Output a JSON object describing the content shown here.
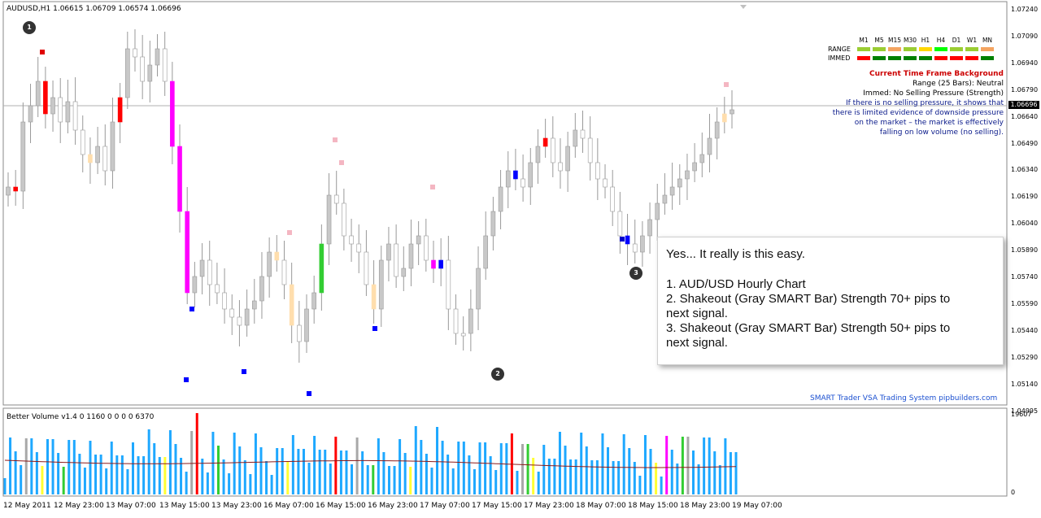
{
  "window": {
    "title": "AUDUSD,H1  1.06615 1.06709 1.06574 1.06696"
  },
  "price_scale": [
    "1.07240",
    "1.07090",
    "1.06940",
    "1.06790",
    "1.06640",
    "1.06490",
    "1.06340",
    "1.06190",
    "1.06040",
    "1.05890",
    "1.05740",
    "1.05590",
    "1.05440",
    "1.05290",
    "1.05140",
    "1.04995"
  ],
  "current_price": "1.06696",
  "volume_indicator": {
    "title": "Better Volume v1.4 0 1160 0 0 0 0 6370",
    "scale_top": "19607",
    "scale_bottom": "0"
  },
  "time_axis": [
    "12 May 2011",
    "12 May 23:00",
    "13 May 07:00",
    "13 May 15:00",
    "13 May 23:00",
    "16 May 07:00",
    "16 May 15:00",
    "16 May 23:00",
    "17 May 07:00",
    "17 May 15:00",
    "17 May 23:00",
    "18 May 07:00",
    "18 May 15:00",
    "18 May 23:00",
    "19 May 07:00"
  ],
  "timeframe_table": {
    "headers": [
      "M1",
      "M5",
      "M15",
      "M30",
      "H1",
      "H4",
      "D1",
      "W1",
      "MN"
    ],
    "rows": [
      {
        "label": "RANGE",
        "colors": [
          "#9acd32",
          "#9acd32",
          "#f4a460",
          "#9acd32",
          "#ffd700",
          "#00ff00",
          "#9acd32",
          "#9acd32",
          "#f4a460"
        ]
      },
      {
        "label": "IMMED",
        "colors": [
          "#ff0000",
          "#008000",
          "#008000",
          "#008000",
          "#008000",
          "#ff0000",
          "#ff0000",
          "#ff0000",
          "#008000"
        ]
      }
    ]
  },
  "info_panel": {
    "title": "Current Time Frame Background",
    "range_line": "Range (25 Bars): Neutral",
    "immed_line": "Immed: No Selling Pressure (Strength)",
    "desc": [
      "If there is no selling pressure, it shows that",
      "there is limited evidence of downside pressure",
      "on the market – the market is effectively",
      "falling on low volume (no selling)."
    ]
  },
  "callout": {
    "lines": [
      "Yes... It really is this easy.",
      "",
      "1. AUD/USD Hourly Chart",
      "2. Shakeout (Gray SMART Bar) Strength 70+ pips to",
      "next signal.",
      "3. Shakeout (Gray SMART Bar) Strength 50+ pips to",
      "next signal."
    ]
  },
  "badges": [
    "1",
    "2",
    "3"
  ],
  "footer": "SMART Trader VSA Trading System pipbuilders.com",
  "colors": {
    "up": "#c8c8c8",
    "down": "#ffffff",
    "magenta": "#ff00ff",
    "red": "#ff0000",
    "blue": "#0000ff",
    "green": "#32cd32",
    "cream": "#ffdead",
    "vol": "#1ea8ff"
  }
}
